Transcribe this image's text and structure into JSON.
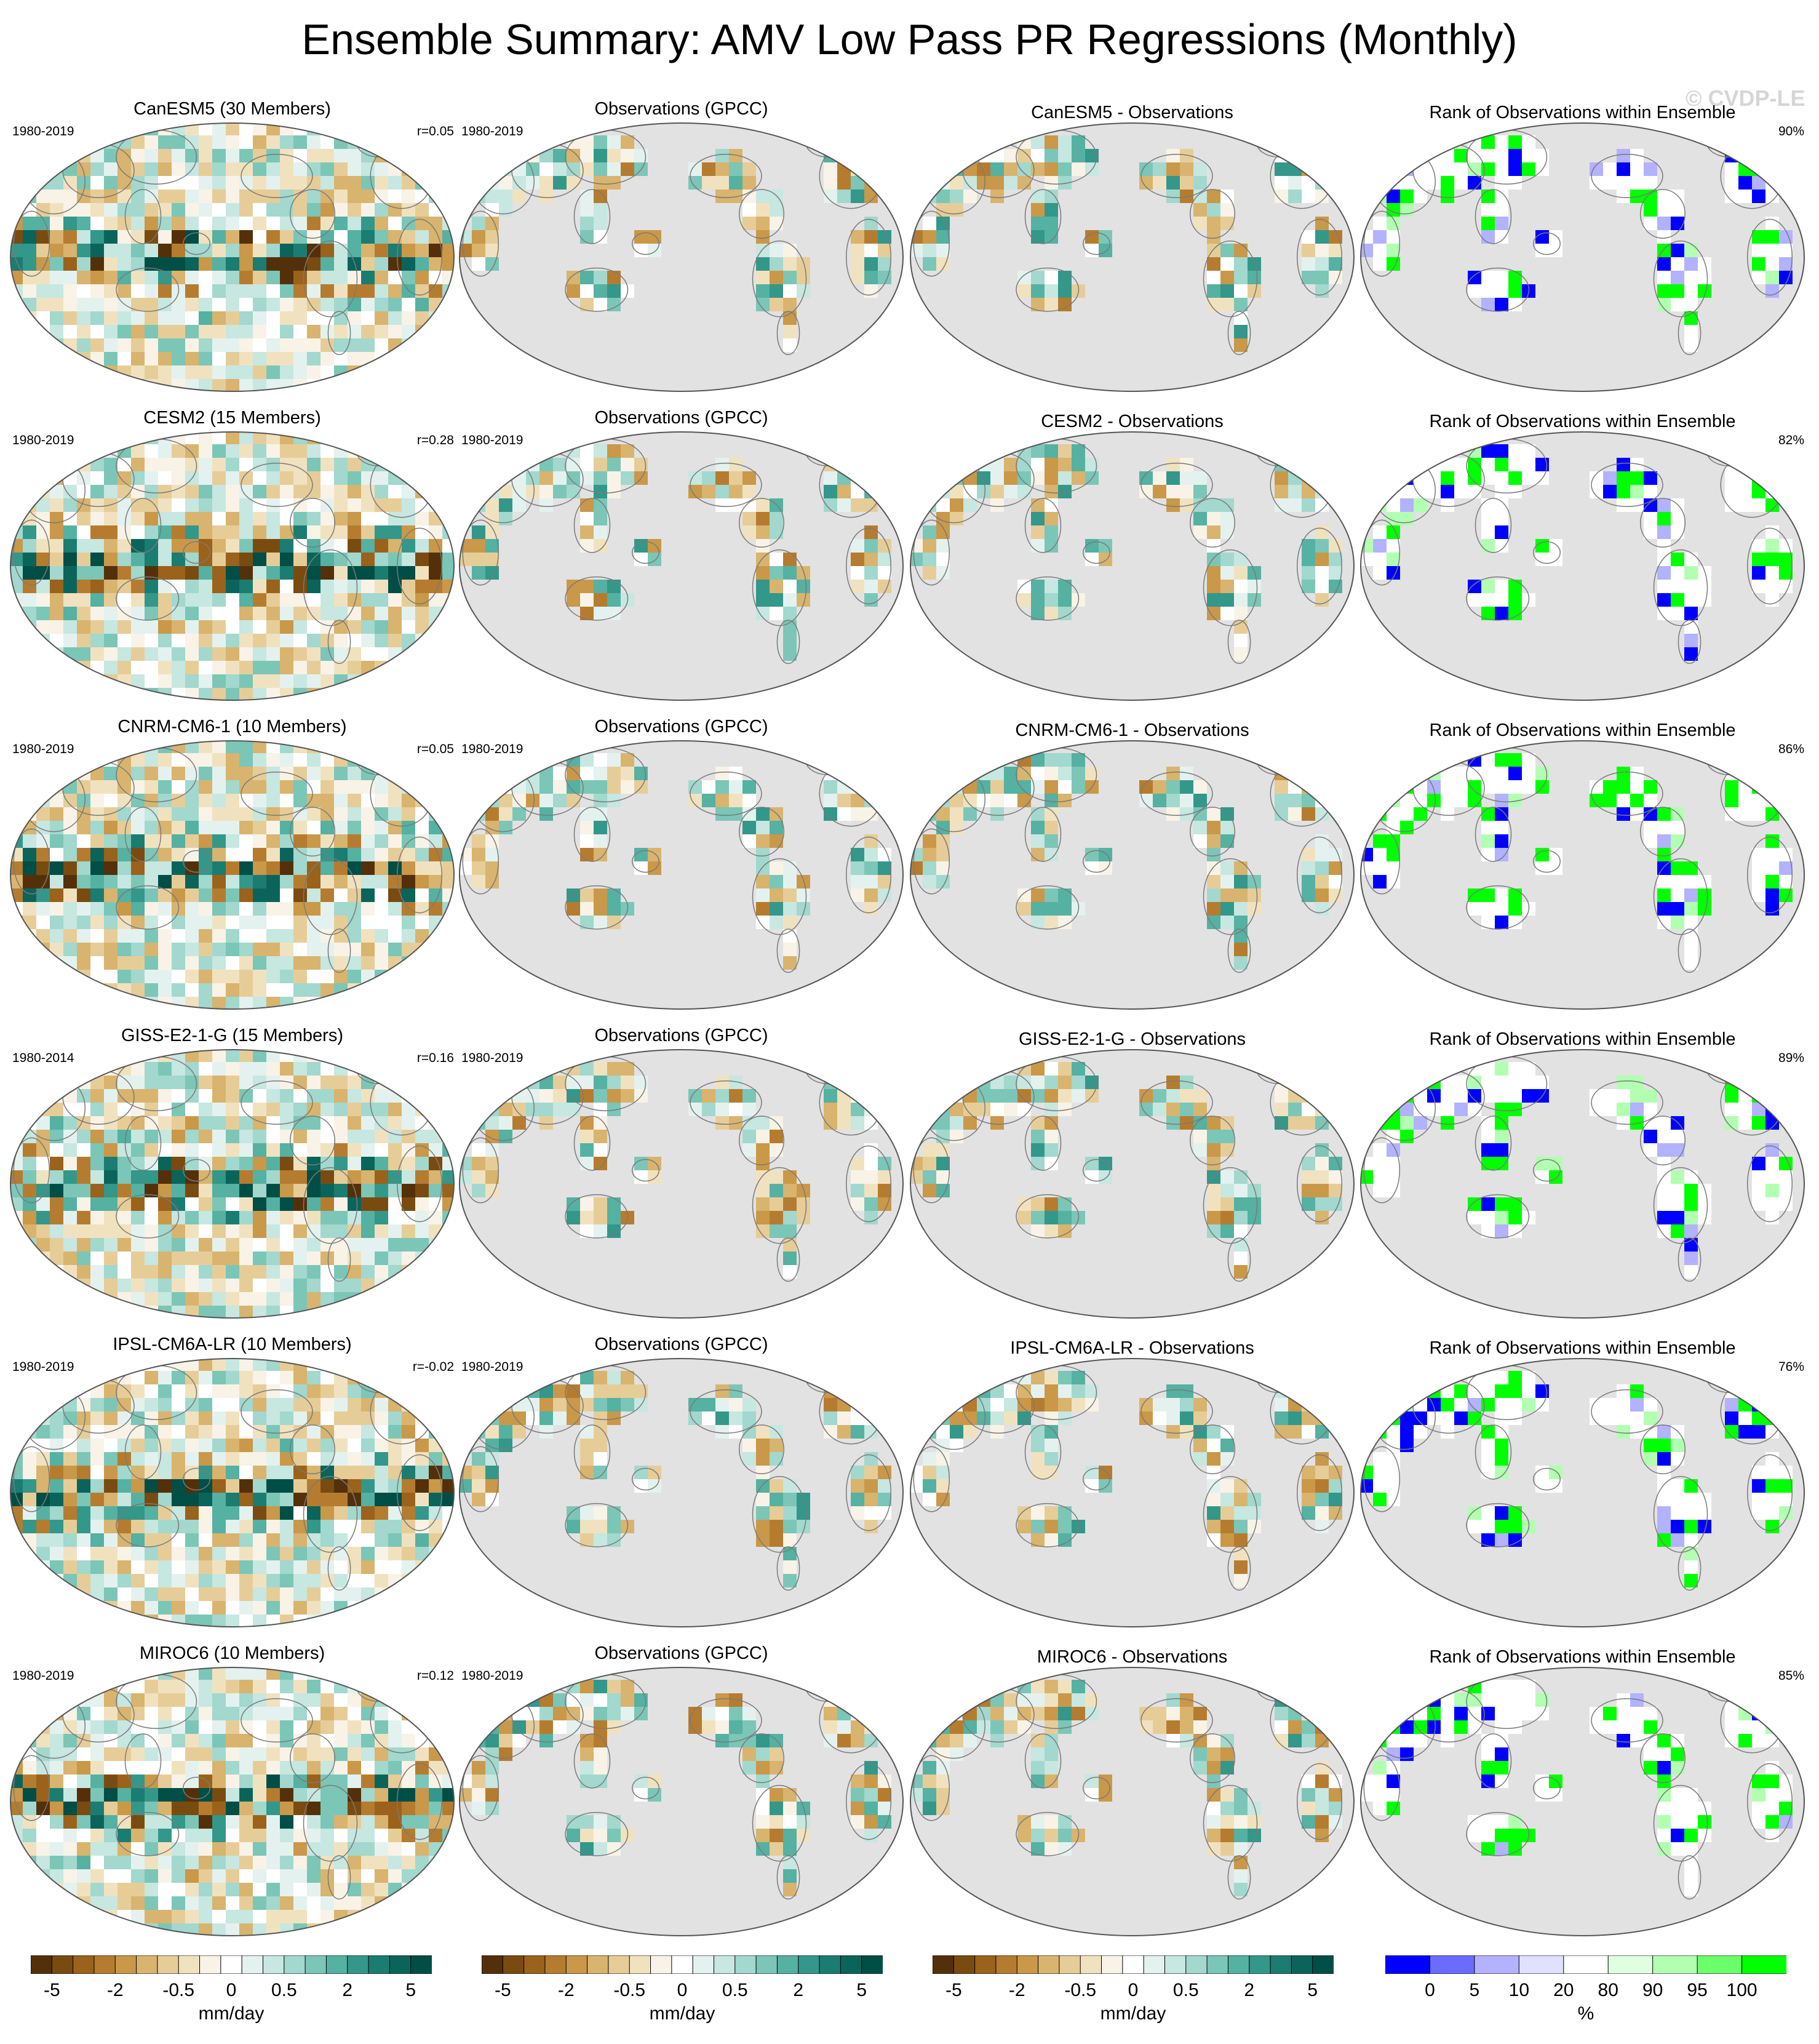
{
  "title": "Ensemble Summary: AMV Low Pass PR Regressions (Monthly)",
  "watermark": "© CVDP-LE",
  "colors": {
    "diverging": [
      "#54300a",
      "#7a4b10",
      "#9a621a",
      "#b57c30",
      "#c99849",
      "#d8b46e",
      "#e6cd98",
      "#f1e2bf",
      "#f8f3e6",
      "#ffffff",
      "#e4f2ef",
      "#c7e7e1",
      "#a2d8cd",
      "#7bc6b7",
      "#55b1a1",
      "#33978a",
      "#1b7c71",
      "#0b645a",
      "#004e45"
    ],
    "rank": [
      "#0000ff",
      "#6b6bff",
      "#b2b2ff",
      "#e0e0ff",
      "#ffffff",
      "#e0ffe0",
      "#b2ffb2",
      "#6bff6b",
      "#00ff00"
    ],
    "land_mask": "#e2e2e2",
    "coast": "#7a7a7a"
  },
  "rows": [
    {
      "model": "CanESM5 (30 Members)",
      "model_period": "1980-2019",
      "corr": "r=0.05",
      "obs_title": "Observations (GPCC)",
      "obs_period": "1980-2019",
      "diff_title": "CanESM5 - Observations",
      "rank_title": "Rank of Observations within Ensemble",
      "rank_pct": "90%"
    },
    {
      "model": "CESM2 (15 Members)",
      "model_period": "1980-2019",
      "corr": "r=0.28",
      "obs_title": "Observations (GPCC)",
      "obs_period": "1980-2019",
      "diff_title": "CESM2 - Observations",
      "rank_title": "Rank of Observations within Ensemble",
      "rank_pct": "82%"
    },
    {
      "model": "CNRM-CM6-1 (10 Members)",
      "model_period": "1980-2019",
      "corr": "r=0.05",
      "obs_title": "Observations (GPCC)",
      "obs_period": "1980-2019",
      "diff_title": "CNRM-CM6-1 - Observations",
      "rank_title": "Rank of Observations within Ensemble",
      "rank_pct": "86%"
    },
    {
      "model": "GISS-E2-1-G (15 Members)",
      "model_period": "1980-2014",
      "corr": "r=0.16",
      "obs_title": "Observations (GPCC)",
      "obs_period": "1980-2019",
      "diff_title": "GISS-E2-1-G - Observations",
      "rank_title": "Rank of Observations within Ensemble",
      "rank_pct": "89%"
    },
    {
      "model": "IPSL-CM6A-LR (10 Members)",
      "model_period": "1980-2019",
      "corr": "r=-0.02",
      "obs_title": "Observations (GPCC)",
      "obs_period": "1980-2019",
      "diff_title": "IPSL-CM6A-LR - Observations",
      "rank_title": "Rank of Observations within Ensemble",
      "rank_pct": "76%"
    },
    {
      "model": "MIROC6 (10 Members)",
      "model_period": "1980-2019",
      "corr": "r=0.12",
      "obs_title": "Observations (GPCC)",
      "obs_period": "1980-2019",
      "diff_title": "MIROC6 - Observations",
      "rank_title": "Rank of Observations within Ensemble",
      "rank_pct": "85%"
    }
  ],
  "colorbars": [
    {
      "kind": "diverging",
      "ticks": [
        "-5",
        "-2",
        "-0.5",
        "0",
        "0.5",
        "2",
        "5"
      ],
      "unit": "mm/day"
    },
    {
      "kind": "diverging",
      "ticks": [
        "-5",
        "-2",
        "-0.5",
        "0",
        "0.5",
        "2",
        "5"
      ],
      "unit": "mm/day"
    },
    {
      "kind": "diverging",
      "ticks": [
        "-5",
        "-2",
        "-0.5",
        "0",
        "0.5",
        "2",
        "5"
      ],
      "unit": "mm/day"
    },
    {
      "kind": "rank",
      "ticks": [
        "0",
        "5",
        "10",
        "20",
        "80",
        "90",
        "95",
        "100"
      ],
      "unit": "%"
    }
  ],
  "chart_data": {
    "type": "heatmap",
    "title": "Ensemble Summary: AMV Low Pass PR Regressions (Monthly)",
    "layout": "6 rows (models) x 4 columns: model ensemble mean, observations (GPCC), model minus observations, rank of observations within ensemble",
    "diverging_levels": [
      -5,
      -4,
      -3,
      -2,
      -1.5,
      -1,
      -0.5,
      -0.25,
      -0.1,
      0,
      0.1,
      0.25,
      0.5,
      1,
      1.5,
      2,
      3,
      4,
      5
    ],
    "diverging_unit": "mm/day",
    "rank_levels": [
      0,
      5,
      10,
      20,
      80,
      90,
      95,
      100
    ],
    "rank_unit": "%",
    "projection": "Robinson, centered on Pacific"
  }
}
